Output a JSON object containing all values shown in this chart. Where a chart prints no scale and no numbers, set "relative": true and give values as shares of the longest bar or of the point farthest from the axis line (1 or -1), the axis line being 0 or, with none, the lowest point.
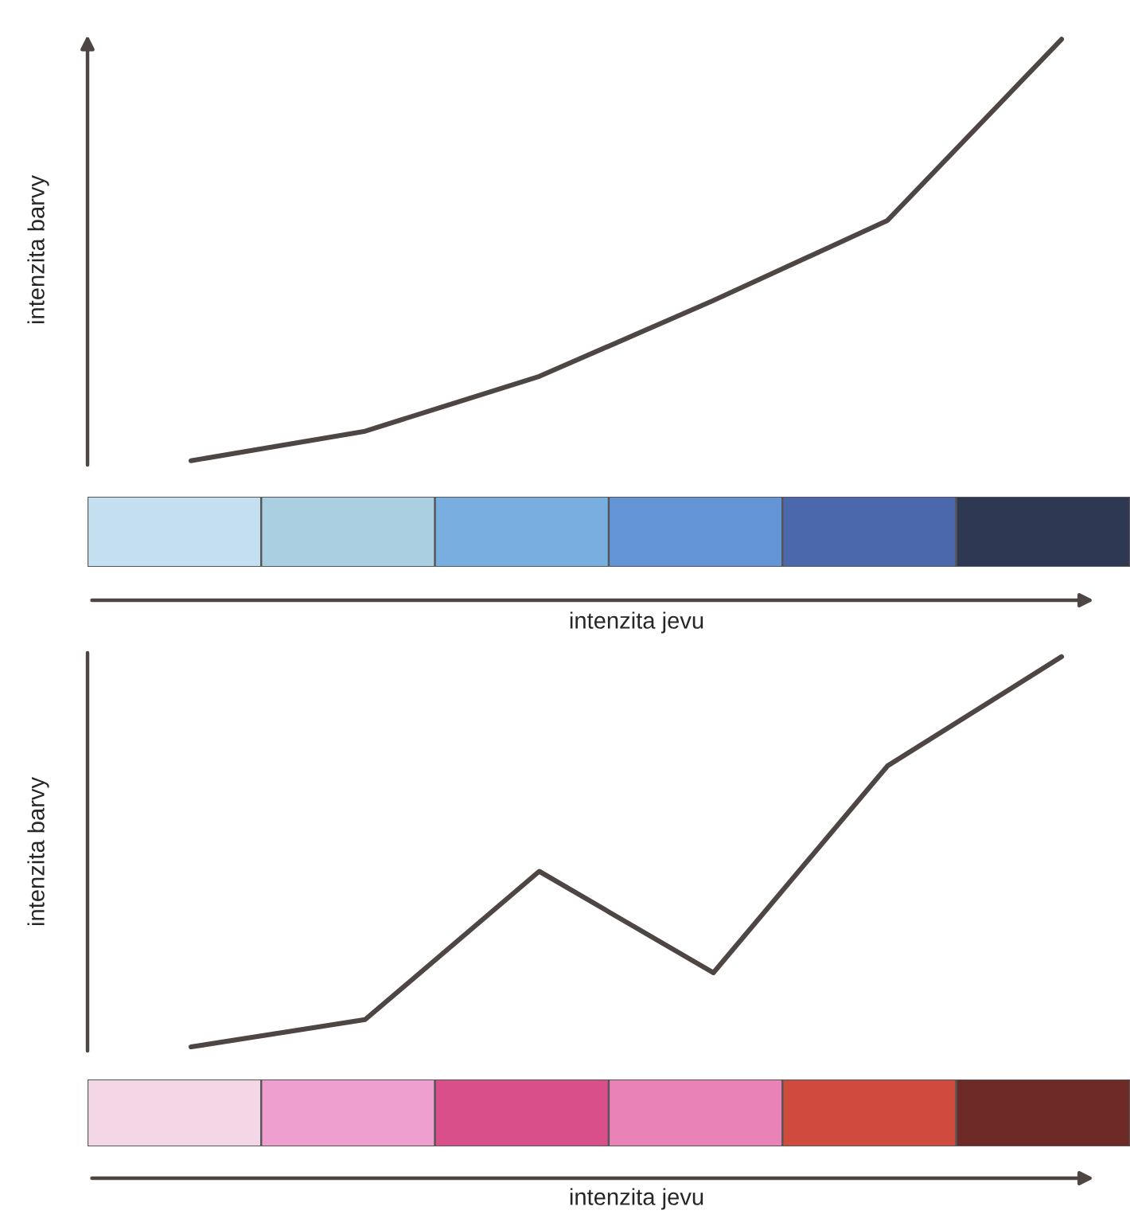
{
  "chart_data": [
    {
      "type": "line",
      "relative": true,
      "xlabel": "intenzita jevu",
      "ylabel": "intenzita barvy",
      "categories": [
        null,
        null,
        null,
        null,
        null,
        null
      ],
      "series": [
        {
          "color": "#4d4642",
          "values": [
            0,
            0.07,
            0.2,
            0.38,
            0.57,
            1
          ]
        }
      ]
    },
    {
      "type": "line",
      "relative": true,
      "xlabel": "intenzita jevu",
      "ylabel": "intenzita barvy",
      "categories": [
        null,
        null,
        null,
        null,
        null,
        null
      ],
      "series": [
        {
          "color": "#4d4642",
          "values": [
            0,
            0.07,
            0.45,
            0.19,
            0.72,
            1
          ]
        }
      ]
    }
  ]
}
